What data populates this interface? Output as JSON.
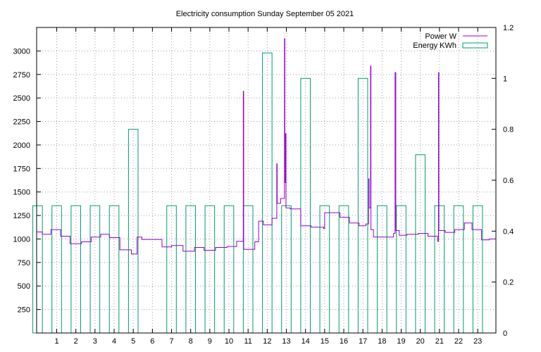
{
  "chart_data": {
    "type": "line",
    "title": "Electricity consumption Sunday September 05 2021",
    "xlabel": "",
    "ylabel": "",
    "y2label": "",
    "x_ticks": [
      1,
      2,
      3,
      4,
      5,
      6,
      7,
      8,
      9,
      10,
      11,
      12,
      13,
      14,
      15,
      16,
      17,
      18,
      19,
      20,
      21,
      22,
      23
    ],
    "xlim": [
      -0.05,
      23.95
    ],
    "ylim": [
      0,
      3250
    ],
    "y_ticks": [
      250,
      500,
      750,
      1000,
      1250,
      1500,
      1750,
      2000,
      2250,
      2500,
      2750,
      3000
    ],
    "y2lim": [
      0,
      1.2
    ],
    "y2_ticks": [
      0,
      0.2,
      0.4,
      0.6,
      0.8,
      1,
      1.2
    ],
    "grid": true,
    "legend_position": "top-right",
    "colors": {
      "power": "#9400d3",
      "energy": "#009e73",
      "grid": "#a0a0a0"
    },
    "series": [
      {
        "name": "Power W",
        "axis": "left",
        "style": "step",
        "points": [
          [
            -0.05,
            1075
          ],
          [
            0.25,
            1075
          ],
          [
            0.25,
            1050
          ],
          [
            0.7,
            1050
          ],
          [
            0.7,
            1100
          ],
          [
            1.2,
            1100
          ],
          [
            1.2,
            1030
          ],
          [
            1.7,
            1030
          ],
          [
            1.7,
            950
          ],
          [
            2.3,
            950
          ],
          [
            2.3,
            970
          ],
          [
            2.8,
            970
          ],
          [
            2.8,
            1020
          ],
          [
            3.3,
            1020
          ],
          [
            3.3,
            1050
          ],
          [
            3.75,
            1050
          ],
          [
            3.75,
            1015
          ],
          [
            4.3,
            1015
          ],
          [
            4.3,
            885
          ],
          [
            4.9,
            885
          ],
          [
            4.9,
            840
          ],
          [
            5.2,
            840
          ],
          [
            5.2,
            1020
          ],
          [
            5.45,
            1020
          ],
          [
            5.45,
            995
          ],
          [
            6.5,
            995
          ],
          [
            6.5,
            915
          ],
          [
            7.0,
            915
          ],
          [
            7.0,
            930
          ],
          [
            7.6,
            930
          ],
          [
            7.6,
            870
          ],
          [
            8.2,
            870
          ],
          [
            8.2,
            910
          ],
          [
            8.7,
            910
          ],
          [
            8.7,
            880
          ],
          [
            9.3,
            880
          ],
          [
            9.3,
            910
          ],
          [
            9.9,
            910
          ],
          [
            9.9,
            920
          ],
          [
            10.4,
            920
          ],
          [
            10.4,
            975
          ],
          [
            10.75,
            975
          ],
          [
            10.75,
            2570
          ],
          [
            10.77,
            2570
          ],
          [
            10.77,
            890
          ],
          [
            11.35,
            890
          ],
          [
            11.35,
            970
          ],
          [
            11.55,
            970
          ],
          [
            11.55,
            1190
          ],
          [
            11.8,
            1190
          ],
          [
            11.8,
            1150
          ],
          [
            12.25,
            1150
          ],
          [
            12.25,
            1220
          ],
          [
            12.5,
            1220
          ],
          [
            12.5,
            1800
          ],
          [
            12.52,
            1800
          ],
          [
            12.52,
            1380
          ],
          [
            12.7,
            1380
          ],
          [
            12.7,
            1430
          ],
          [
            12.9,
            1430
          ],
          [
            12.9,
            3130
          ],
          [
            12.92,
            3130
          ],
          [
            12.92,
            1600
          ],
          [
            12.96,
            1600
          ],
          [
            12.96,
            2120
          ],
          [
            12.98,
            2120
          ],
          [
            12.98,
            1330
          ],
          [
            13.2,
            1330
          ],
          [
            13.2,
            1320
          ],
          [
            13.75,
            1320
          ],
          [
            13.75,
            1140
          ],
          [
            14.3,
            1140
          ],
          [
            14.3,
            1125
          ],
          [
            14.95,
            1125
          ],
          [
            14.95,
            1110
          ],
          [
            15.0,
            1110
          ],
          [
            15.0,
            1280
          ],
          [
            15.8,
            1280
          ],
          [
            15.8,
            1230
          ],
          [
            16.3,
            1230
          ],
          [
            16.3,
            1170
          ],
          [
            16.8,
            1170
          ],
          [
            16.8,
            1140
          ],
          [
            17.15,
            1140
          ],
          [
            17.15,
            1160
          ],
          [
            17.3,
            1160
          ],
          [
            17.3,
            1640
          ],
          [
            17.32,
            1640
          ],
          [
            17.32,
            1330
          ],
          [
            17.4,
            1330
          ],
          [
            17.4,
            2840
          ],
          [
            17.42,
            2840
          ],
          [
            17.42,
            1100
          ],
          [
            17.55,
            1100
          ],
          [
            17.55,
            1020
          ],
          [
            18.6,
            1020
          ],
          [
            18.6,
            1060
          ],
          [
            18.68,
            1060
          ],
          [
            18.68,
            2770
          ],
          [
            18.72,
            2770
          ],
          [
            18.72,
            1090
          ],
          [
            18.9,
            1090
          ],
          [
            18.9,
            1040
          ],
          [
            19.3,
            1040
          ],
          [
            19.3,
            1050
          ],
          [
            19.9,
            1050
          ],
          [
            19.9,
            1060
          ],
          [
            20.4,
            1060
          ],
          [
            20.4,
            1030
          ],
          [
            20.9,
            1030
          ],
          [
            20.9,
            975
          ],
          [
            20.95,
            975
          ],
          [
            20.95,
            2770
          ],
          [
            20.97,
            2770
          ],
          [
            20.97,
            1090
          ],
          [
            21.3,
            1090
          ],
          [
            21.3,
            1070
          ],
          [
            21.8,
            1070
          ],
          [
            21.8,
            1100
          ],
          [
            22.3,
            1100
          ],
          [
            22.3,
            1170
          ],
          [
            22.7,
            1170
          ],
          [
            22.7,
            1100
          ],
          [
            23.2,
            1100
          ],
          [
            23.2,
            990
          ],
          [
            23.6,
            990
          ],
          [
            23.6,
            1000
          ],
          [
            23.95,
            1000
          ]
        ]
      },
      {
        "name": "Energy KWh",
        "axis": "right",
        "style": "boxes",
        "boxes": [
          {
            "x": 0,
            "value": 0.5
          },
          {
            "x": 1,
            "value": 0.5
          },
          {
            "x": 2,
            "value": 0.5
          },
          {
            "x": 3,
            "value": 0.5
          },
          {
            "x": 4,
            "value": 0.5
          },
          {
            "x": 5,
            "value": 0.8
          },
          {
            "x": 7,
            "value": 0.5
          },
          {
            "x": 8,
            "value": 0.5
          },
          {
            "x": 9,
            "value": 0.5
          },
          {
            "x": 10,
            "value": 0.5
          },
          {
            "x": 11,
            "value": 0.5
          },
          {
            "x": 12,
            "value": 1.1
          },
          {
            "x": 13,
            "value": 0.5
          },
          {
            "x": 14,
            "value": 1.0
          },
          {
            "x": 15,
            "value": 0.5
          },
          {
            "x": 16,
            "value": 0.5
          },
          {
            "x": 17,
            "value": 1.0
          },
          {
            "x": 18,
            "value": 0.5
          },
          {
            "x": 19,
            "value": 0.5
          },
          {
            "x": 20,
            "value": 0.7
          },
          {
            "x": 21,
            "value": 0.5
          },
          {
            "x": 22,
            "value": 0.5
          },
          {
            "x": 23,
            "value": 0.5
          }
        ]
      }
    ]
  }
}
